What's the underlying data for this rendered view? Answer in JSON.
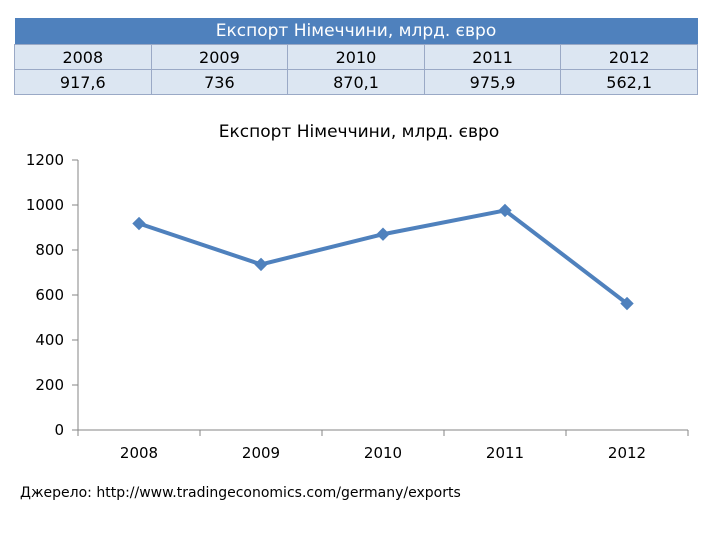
{
  "table": {
    "title": "Експорт Німеччини, млрд. євро",
    "years": [
      "2008",
      "2009",
      "2010",
      "2011",
      "2012"
    ],
    "values": [
      "917,6",
      "736",
      "870,1",
      "975,9",
      "562,1"
    ]
  },
  "chart_data": {
    "type": "line",
    "title": "Експорт Німеччини, млрд. євро",
    "categories": [
      "2008",
      "2009",
      "2010",
      "2011",
      "2012"
    ],
    "series": [
      {
        "values": [
          917.6,
          736,
          870.1,
          975.9,
          562.1
        ]
      }
    ],
    "ylim": [
      0,
      1200
    ],
    "yticks": [
      0,
      200,
      400,
      600,
      800,
      1000,
      1200
    ],
    "xlabel": "",
    "ylabel": "",
    "grid": false,
    "legend": "none",
    "line_color": "#4f81bd"
  },
  "source": "Джерело: http://www.tradingeconomics.com/germany/exports"
}
